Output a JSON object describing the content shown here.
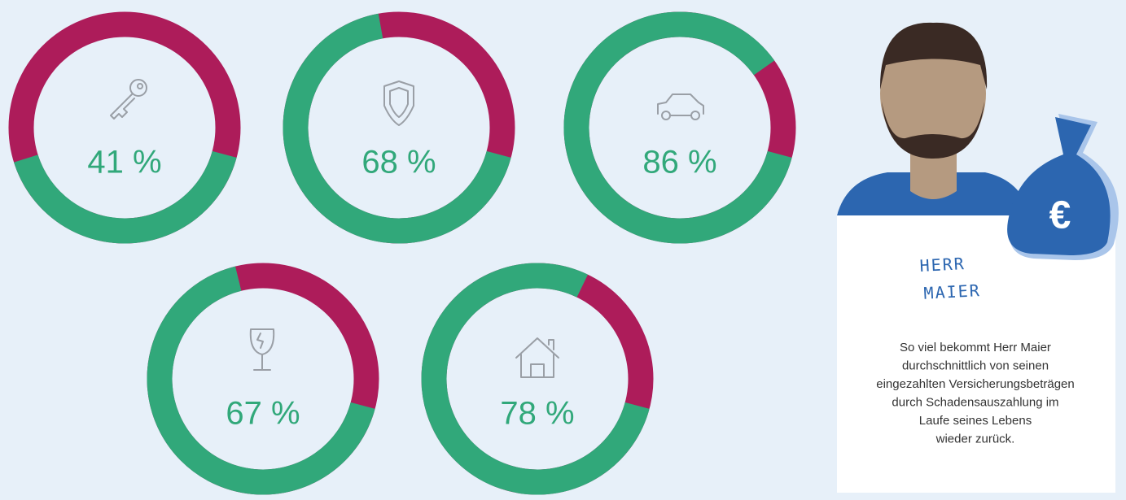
{
  "chart_data": {
    "type": "donut",
    "values": [
      41,
      68,
      86,
      67,
      78
    ],
    "value_labels": [
      "41 %",
      "68 %",
      "86 %",
      "67 %",
      "78 %"
    ],
    "color": "#31a87a",
    "track_color": "#ad1c5a"
  },
  "card": {
    "title_lines": [
      "HERR",
      "MAIER"
    ],
    "text_lines": [
      "So viel bekommt Herr Maier",
      "durchschnittlich von seinen",
      "eingezahlten Versicherungsbeträgen",
      "durch Schadensauszahlung im",
      "Laufe seines Lebens",
      "wieder zurück."
    ],
    "badge": "€"
  }
}
